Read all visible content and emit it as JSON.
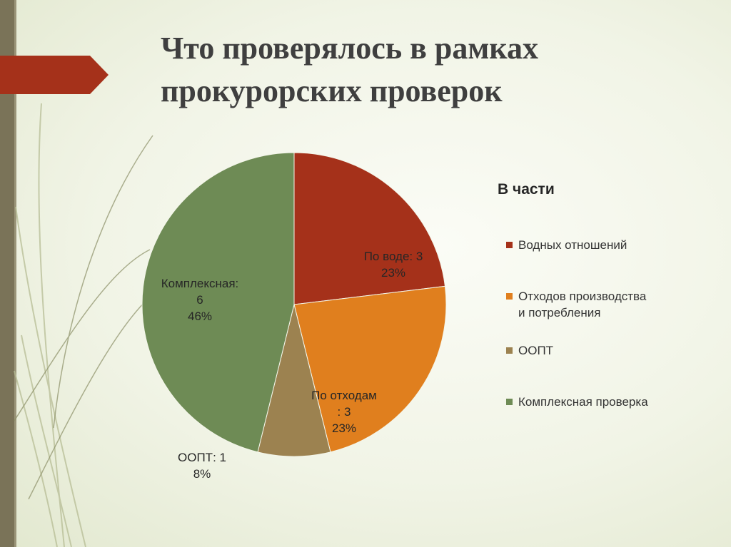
{
  "slide": {
    "title_line1": "Что проверялось в рамках",
    "title_line2": "прокурорских проверок",
    "accent_color": "#a5311a",
    "bar_color": "#7a7358"
  },
  "chart_data": {
    "type": "pie",
    "title": "",
    "start_angle_deg": 0,
    "direction": "clockwise",
    "slices": [
      {
        "category": "Водных отношений",
        "label_name": "По воде",
        "value": 3,
        "percent": "23%",
        "color": "#a5311a"
      },
      {
        "category": "Отходов производства и потребления",
        "label_name": "По отходам",
        "value": 3,
        "percent": "23%",
        "color": "#e07f1e"
      },
      {
        "category": "ООПТ",
        "label_name": "ООПТ",
        "value": 1,
        "percent": "8%",
        "color": "#9c8250"
      },
      {
        "category": "Комплексная проверка",
        "label_name": "Комплексная",
        "value": 6,
        "percent": "46%",
        "color": "#6e8b55"
      }
    ],
    "data_labels": [
      {
        "line1": "По воде: 3",
        "line2": "23%"
      },
      {
        "line1": "По отходам",
        "line2": ": 3",
        "line3": "23%"
      },
      {
        "line1": "ООПТ: 1",
        "line2": "8%"
      },
      {
        "line1": "Комплексная:",
        "line2": "6",
        "line3": "46%"
      }
    ],
    "legend": {
      "title": "В части",
      "position": "right",
      "items": [
        {
          "label": "Водных отношений",
          "color": "#a5311a"
        },
        {
          "label": "Отходов производства и потребления",
          "color": "#e07f1e"
        },
        {
          "label": "ООПТ",
          "color": "#9c8250"
        },
        {
          "label": "Комплексная проверка",
          "color": "#6e8b55"
        }
      ]
    }
  }
}
